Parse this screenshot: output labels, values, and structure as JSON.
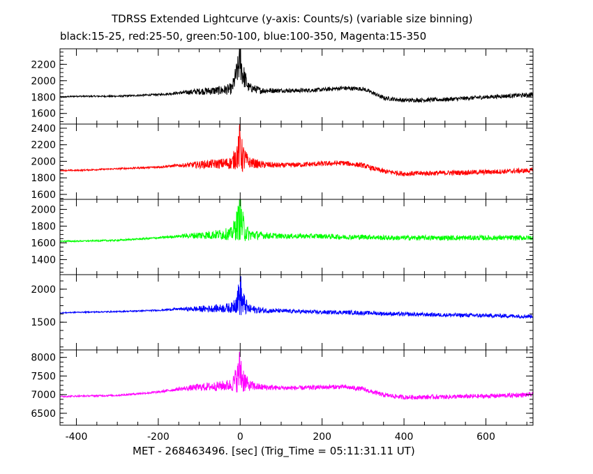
{
  "header": {
    "title": "TDRSS Extended Lightcurve (y-axis: Counts/s) (variable size binning)",
    "subtitle": "black:15-25, red:25-50, green:50-100, blue:100-350, Magenta:15-350"
  },
  "xaxis": {
    "label": "MET - 268463496. [sec] (Trig_Time = 05:11:31.11 UT)"
  },
  "chart_data": {
    "type": "line",
    "title": "TDRSS Extended Lightcurve (y-axis: Counts/s) (variable size binning)",
    "xlabel": "MET - 268463496. [sec] (Trig_Time = 05:11:31.11 UT)",
    "ylabel": "Counts/s",
    "xlim": [
      -440,
      715
    ],
    "xticks": [
      -400,
      -200,
      0,
      200,
      400,
      600
    ],
    "grid": false,
    "panels": [
      {
        "name": "black:15-25",
        "color": "#000000",
        "ylim": [
          1470,
          2390
        ],
        "yticks": [
          1600,
          1800,
          2000,
          2200
        ],
        "x": [
          -440,
          -400,
          -300,
          -200,
          -150,
          -100,
          -50,
          -20,
          -5,
          0,
          5,
          20,
          50,
          100,
          150,
          200,
          250,
          300,
          320,
          350,
          400,
          500,
          600,
          715
        ],
        "y": [
          1800,
          1810,
          1810,
          1830,
          1850,
          1870,
          1880,
          1900,
          2150,
          2300,
          2100,
          1920,
          1880,
          1880,
          1880,
          1890,
          1910,
          1900,
          1860,
          1790,
          1760,
          1770,
          1800,
          1830
        ],
        "noise": [
          8,
          8,
          10,
          12,
          18,
          40,
          55,
          70,
          180,
          300,
          170,
          60,
          40,
          25,
          25,
          25,
          25,
          25,
          25,
          25,
          25,
          25,
          25,
          25
        ]
      },
      {
        "name": "red:25-50",
        "color": "#ff0000",
        "ylim": [
          1540,
          2450
        ],
        "yticks": [
          1600,
          1800,
          2000,
          2200,
          2400
        ],
        "x": [
          -440,
          -400,
          -300,
          -200,
          -150,
          -100,
          -50,
          -20,
          -5,
          0,
          5,
          20,
          50,
          100,
          150,
          200,
          250,
          300,
          320,
          350,
          400,
          500,
          600,
          715
        ],
        "y": [
          1890,
          1890,
          1910,
          1930,
          1950,
          1960,
          1970,
          1980,
          2100,
          2200,
          2050,
          1990,
          1960,
          1950,
          1960,
          1970,
          1980,
          1950,
          1920,
          1880,
          1850,
          1860,
          1870,
          1890
        ],
        "noise": [
          8,
          8,
          10,
          12,
          18,
          45,
          60,
          80,
          200,
          330,
          200,
          70,
          45,
          30,
          30,
          30,
          30,
          30,
          30,
          30,
          30,
          30,
          30,
          30
        ]
      },
      {
        "name": "green:50-100",
        "color": "#00ff00",
        "ylim": [
          1220,
          2120
        ],
        "yticks": [
          1400,
          1600,
          1800,
          2000
        ],
        "x": [
          -440,
          -400,
          -300,
          -200,
          -150,
          -100,
          -50,
          -20,
          -5,
          0,
          5,
          20,
          50,
          100,
          150,
          200,
          250,
          300,
          320,
          350,
          400,
          500,
          600,
          715
        ],
        "y": [
          1620,
          1620,
          1630,
          1660,
          1680,
          1690,
          1700,
          1710,
          1850,
          1950,
          1800,
          1700,
          1690,
          1680,
          1680,
          1680,
          1670,
          1670,
          1670,
          1660,
          1660,
          1660,
          1660,
          1660
        ],
        "noise": [
          8,
          8,
          10,
          12,
          18,
          45,
          60,
          80,
          220,
          330,
          200,
          75,
          45,
          30,
          30,
          30,
          30,
          30,
          30,
          30,
          30,
          30,
          30,
          30
        ]
      },
      {
        "name": "blue:100-350",
        "color": "#0000ff",
        "ylim": [
          1080,
          2220
        ],
        "yticks": [
          1500,
          2000
        ],
        "x": [
          -440,
          -400,
          -300,
          -200,
          -150,
          -100,
          -50,
          -20,
          -5,
          0,
          5,
          20,
          50,
          100,
          150,
          200,
          250,
          300,
          320,
          350,
          400,
          500,
          600,
          715
        ],
        "y": [
          1640,
          1650,
          1660,
          1680,
          1700,
          1700,
          1710,
          1720,
          1850,
          1950,
          1800,
          1700,
          1680,
          1670,
          1660,
          1650,
          1650,
          1640,
          1640,
          1630,
          1620,
          1610,
          1600,
          1590
        ],
        "noise": [
          8,
          8,
          10,
          12,
          18,
          45,
          60,
          80,
          220,
          380,
          220,
          75,
          45,
          30,
          30,
          30,
          30,
          30,
          30,
          30,
          30,
          30,
          30,
          30
        ]
      },
      {
        "name": "Magenta:15-350",
        "color": "#ff00ff",
        "ylim": [
          6180,
          8200
        ],
        "yticks": [
          6500,
          7000,
          7500,
          8000
        ],
        "x": [
          -440,
          -400,
          -300,
          -200,
          -150,
          -100,
          -50,
          -20,
          -5,
          0,
          5,
          20,
          50,
          100,
          150,
          200,
          250,
          300,
          320,
          350,
          400,
          500,
          600,
          715
        ],
        "y": [
          6950,
          6960,
          6980,
          7070,
          7150,
          7200,
          7230,
          7260,
          7500,
          7700,
          7450,
          7250,
          7200,
          7180,
          7180,
          7200,
          7210,
          7150,
          7080,
          6990,
          6930,
          6940,
          6960,
          7000
        ],
        "noise": [
          20,
          20,
          25,
          30,
          45,
          100,
          130,
          170,
          450,
          700,
          420,
          150,
          90,
          60,
          60,
          60,
          60,
          60,
          60,
          60,
          60,
          60,
          60,
          60
        ]
      }
    ]
  }
}
